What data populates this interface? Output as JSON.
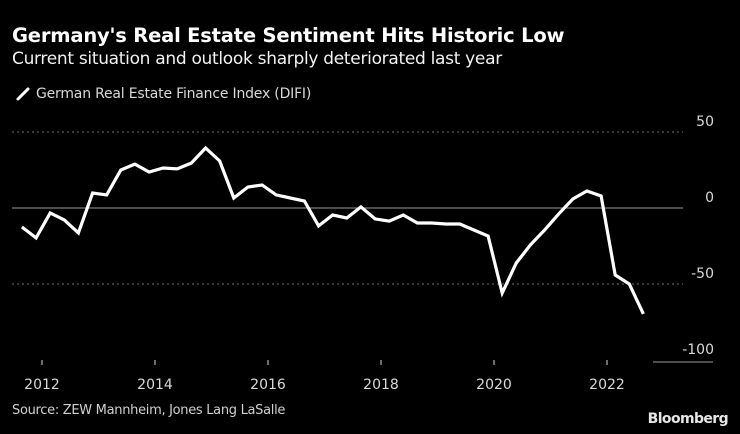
{
  "header": {
    "title": "Germany's Real Estate Sentiment Hits Historic Low",
    "subtitle": "Current situation and outlook sharply deteriorated last year"
  },
  "footer": {
    "source": "Source: ZEW Mannheim, Jones Lang LaSalle",
    "brand": "Bloomberg"
  },
  "colors": {
    "background": "#000000",
    "line": "#ffffff",
    "grid": "#6e6e6e",
    "zero_line": "#9a9a9a",
    "text": "#d9d9d9"
  },
  "chart_data": {
    "type": "line",
    "title": "Germany's Real Estate Sentiment Hits Historic Low",
    "subtitle": "Current situation and outlook sharply deteriorated last year",
    "xlabel": "",
    "ylabel": "",
    "legend": {
      "position": "top-left",
      "entries": [
        "German Real Estate Finance Index (DIFI)"
      ]
    },
    "grid": true,
    "y_axis_side": "right",
    "ylim": [
      -100,
      50
    ],
    "yticks": [
      50,
      0,
      -50,
      -100
    ],
    "ytick_labels": [
      "50",
      "0",
      "-50",
      "-100"
    ],
    "xlim": [
      2011.75,
      2023.1
    ],
    "xticks": [
      2012,
      2014,
      2016,
      2018,
      2020,
      2022
    ],
    "xtick_labels": [
      "2012",
      "2014",
      "2016",
      "2018",
      "2020",
      "2022"
    ],
    "series": [
      {
        "name": "German Real Estate Finance Index (DIFI)",
        "x": [
          "2011-Q4",
          "2012-Q1",
          "2012-Q2",
          "2012-Q3",
          "2012-Q4",
          "2013-Q1",
          "2013-Q2",
          "2013-Q3",
          "2013-Q4",
          "2014-Q1",
          "2014-Q2",
          "2014-Q3",
          "2014-Q4",
          "2015-Q1",
          "2015-Q2",
          "2015-Q3",
          "2015-Q4",
          "2016-Q1",
          "2016-Q2",
          "2016-Q3",
          "2016-Q4",
          "2017-Q1",
          "2017-Q2",
          "2017-Q3",
          "2017-Q4",
          "2018-Q1",
          "2018-Q2",
          "2018-Q3",
          "2018-Q4",
          "2019-Q1",
          "2019-Q2",
          "2019-Q3",
          "2019-Q4",
          "2020-Q1",
          "2020-Q2",
          "2020-Q3",
          "2020-Q4",
          "2021-Q1",
          "2021-Q2",
          "2021-Q3",
          "2021-Q4",
          "2022-Q1",
          "2022-Q2",
          "2022-Q3",
          "2022-Q4"
        ],
        "values": [
          -12.5,
          -19.7,
          -3.3,
          -7.9,
          -16.4,
          9.9,
          8.6,
          25.0,
          28.9,
          23.7,
          26.3,
          25.7,
          29.6,
          39.5,
          30.9,
          6.6,
          13.8,
          15.1,
          8.6,
          6.6,
          4.6,
          -11.8,
          -4.6,
          -6.6,
          0.7,
          -7.2,
          -8.6,
          -4.6,
          -9.9,
          -9.9,
          -10.5,
          -10.5,
          -14.5,
          -18.4,
          -55.9,
          -36.2,
          -24.3,
          -14.5,
          -3.9,
          5.9,
          11.2,
          7.9,
          -44.1,
          -50.0,
          -69.7
        ]
      }
    ]
  }
}
